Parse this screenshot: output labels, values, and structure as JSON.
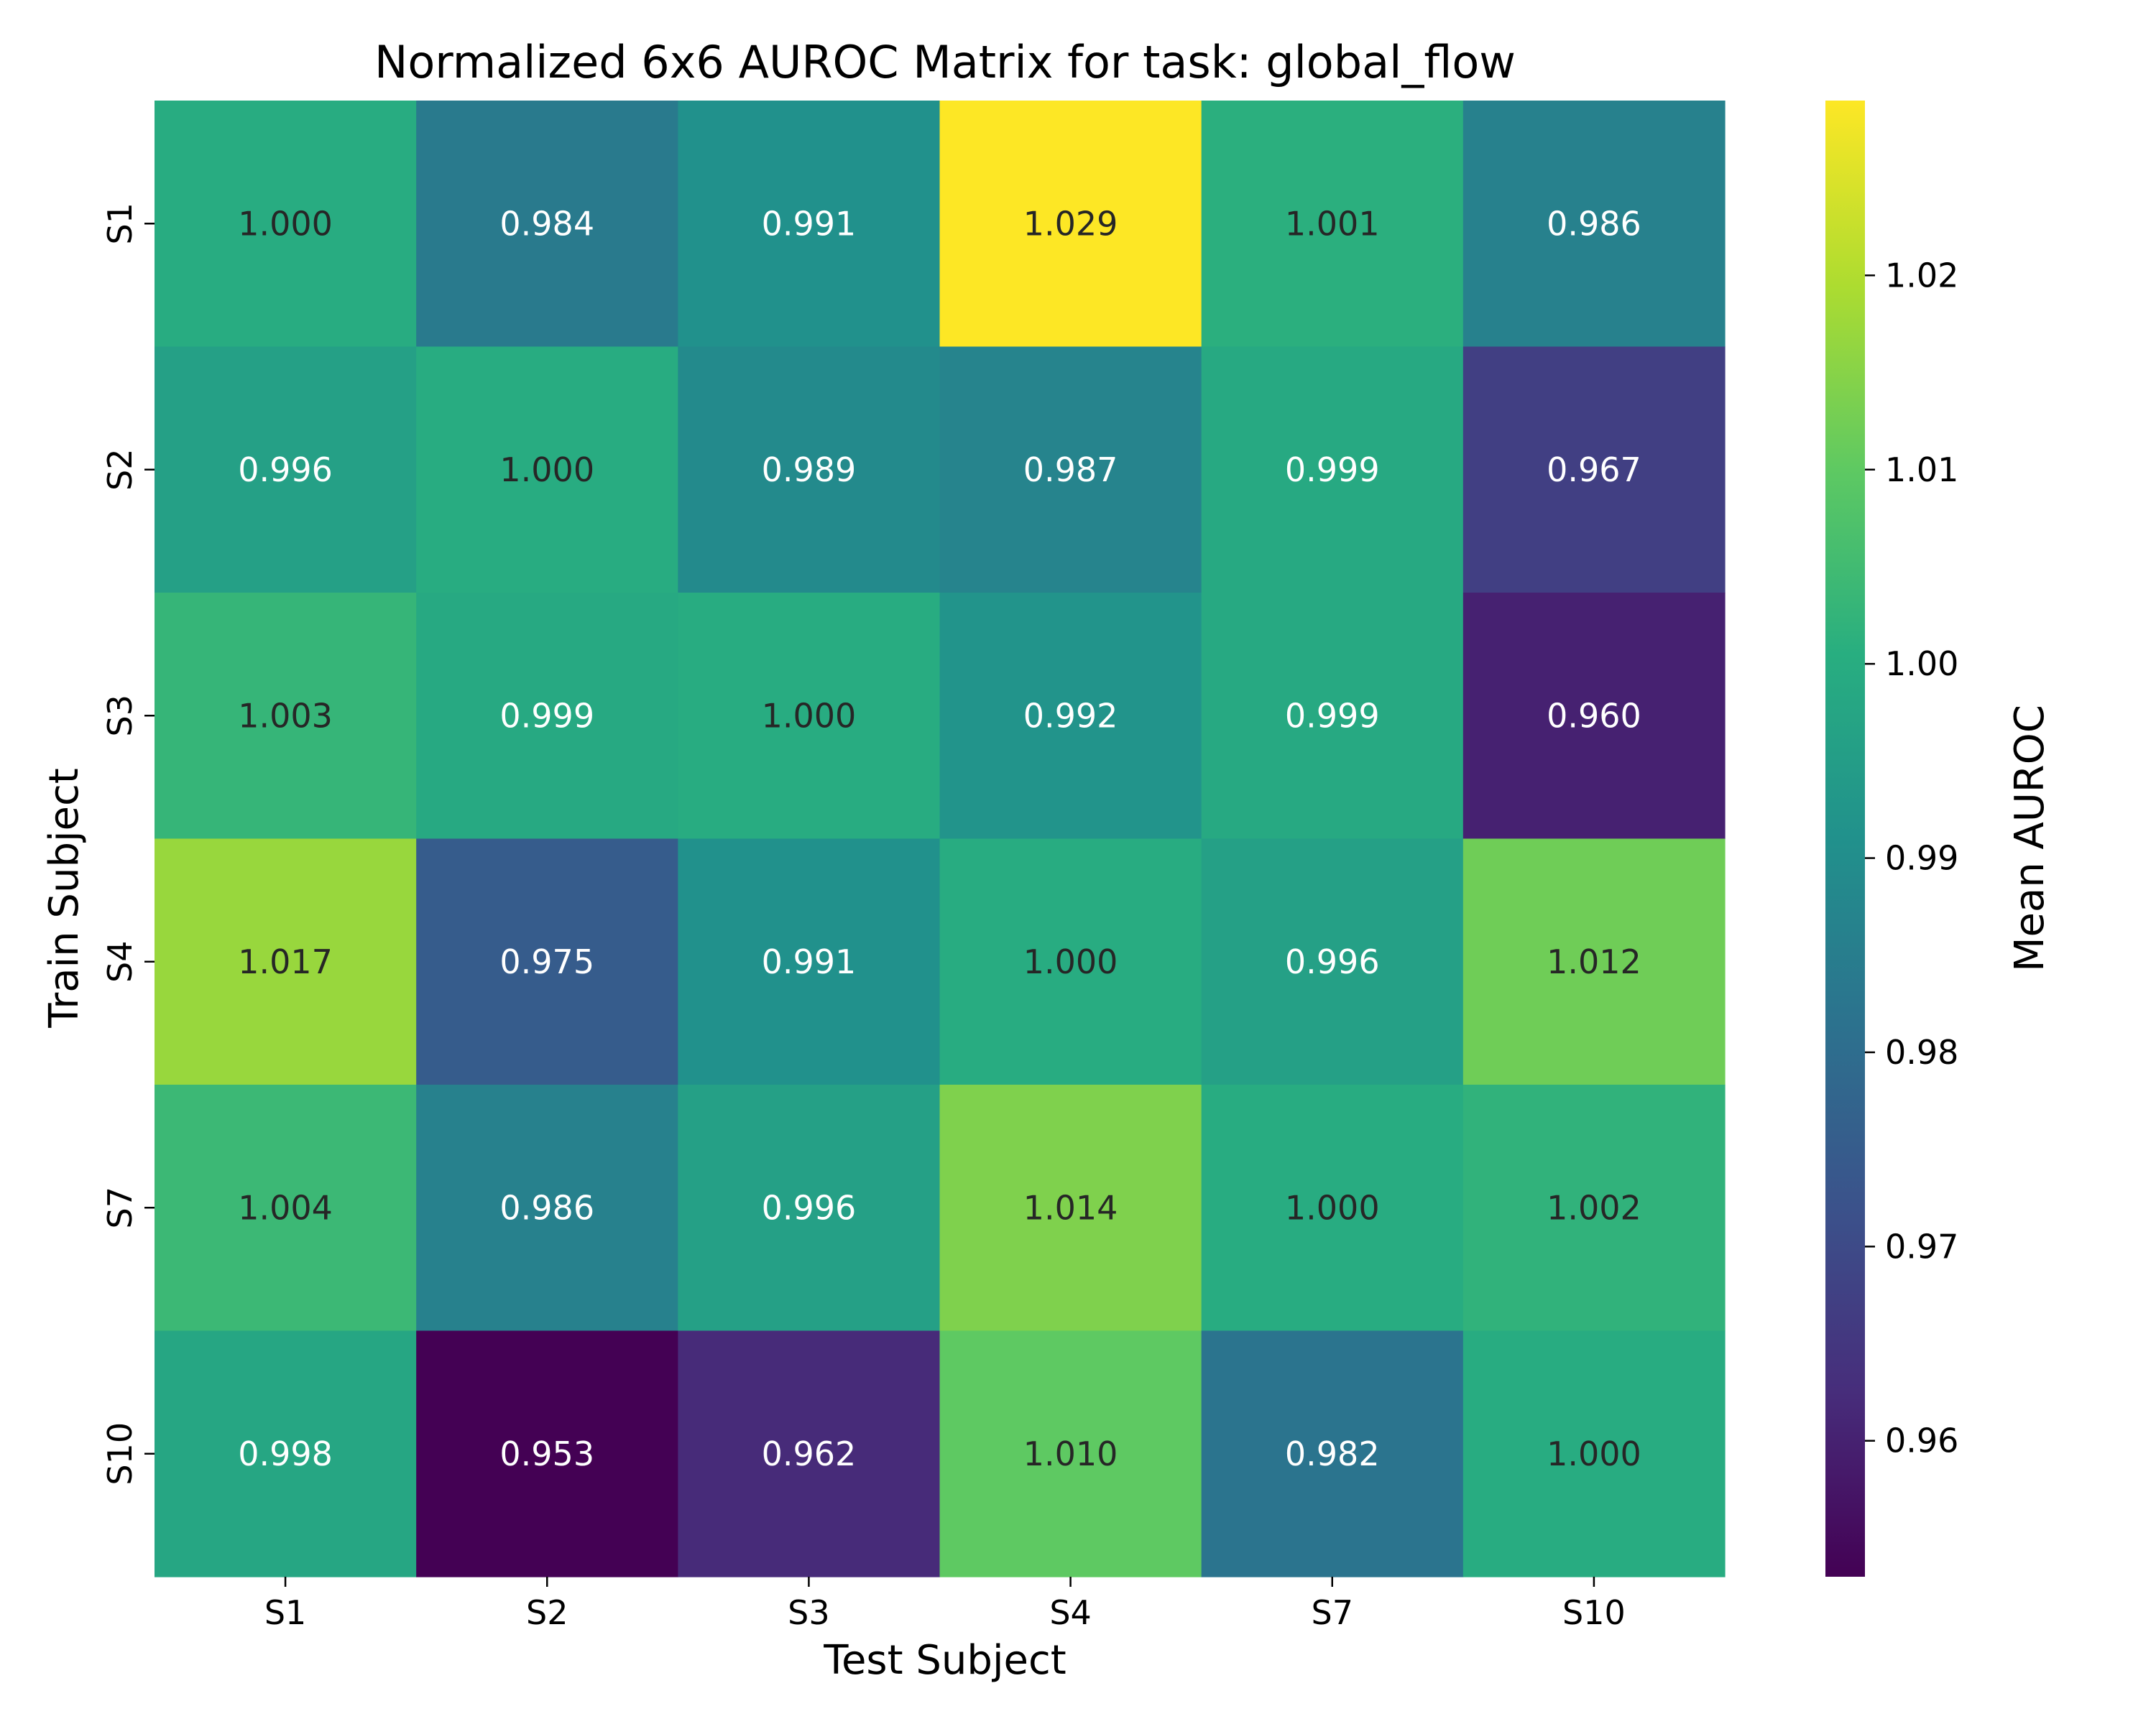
{
  "chart_data": {
    "type": "heatmap",
    "title": "Normalized 6x6 AUROC Matrix for task: global_flow",
    "xlabel": "Test Subject",
    "ylabel": "Train Subject",
    "x_categories": [
      "S1",
      "S2",
      "S3",
      "S4",
      "S7",
      "S10"
    ],
    "y_categories": [
      "S1",
      "S2",
      "S3",
      "S4",
      "S7",
      "S10"
    ],
    "values": [
      [
        1.0,
        0.984,
        0.991,
        1.029,
        1.001,
        0.986
      ],
      [
        0.996,
        1.0,
        0.989,
        0.987,
        0.999,
        0.967
      ],
      [
        1.003,
        0.999,
        1.0,
        0.992,
        0.999,
        0.96
      ],
      [
        1.017,
        0.975,
        0.991,
        1.0,
        0.996,
        1.012
      ],
      [
        1.004,
        0.986,
        0.996,
        1.014,
        1.0,
        1.002
      ],
      [
        0.998,
        0.953,
        0.962,
        1.01,
        0.982,
        1.0
      ]
    ],
    "value_format": "0.000",
    "colormap": "viridis",
    "colorbar": {
      "label": "Mean AUROC",
      "range": [
        0.953,
        1.029
      ],
      "ticks": [
        0.96,
        0.97,
        0.98,
        0.99,
        1.0,
        1.01,
        1.02
      ],
      "tick_labels": [
        "0.96",
        "0.97",
        "0.98",
        "0.99",
        "1.00",
        "1.01",
        "1.02"
      ]
    },
    "annotation_colors": {
      "light": "#ffffff",
      "dark": "#262626"
    }
  }
}
